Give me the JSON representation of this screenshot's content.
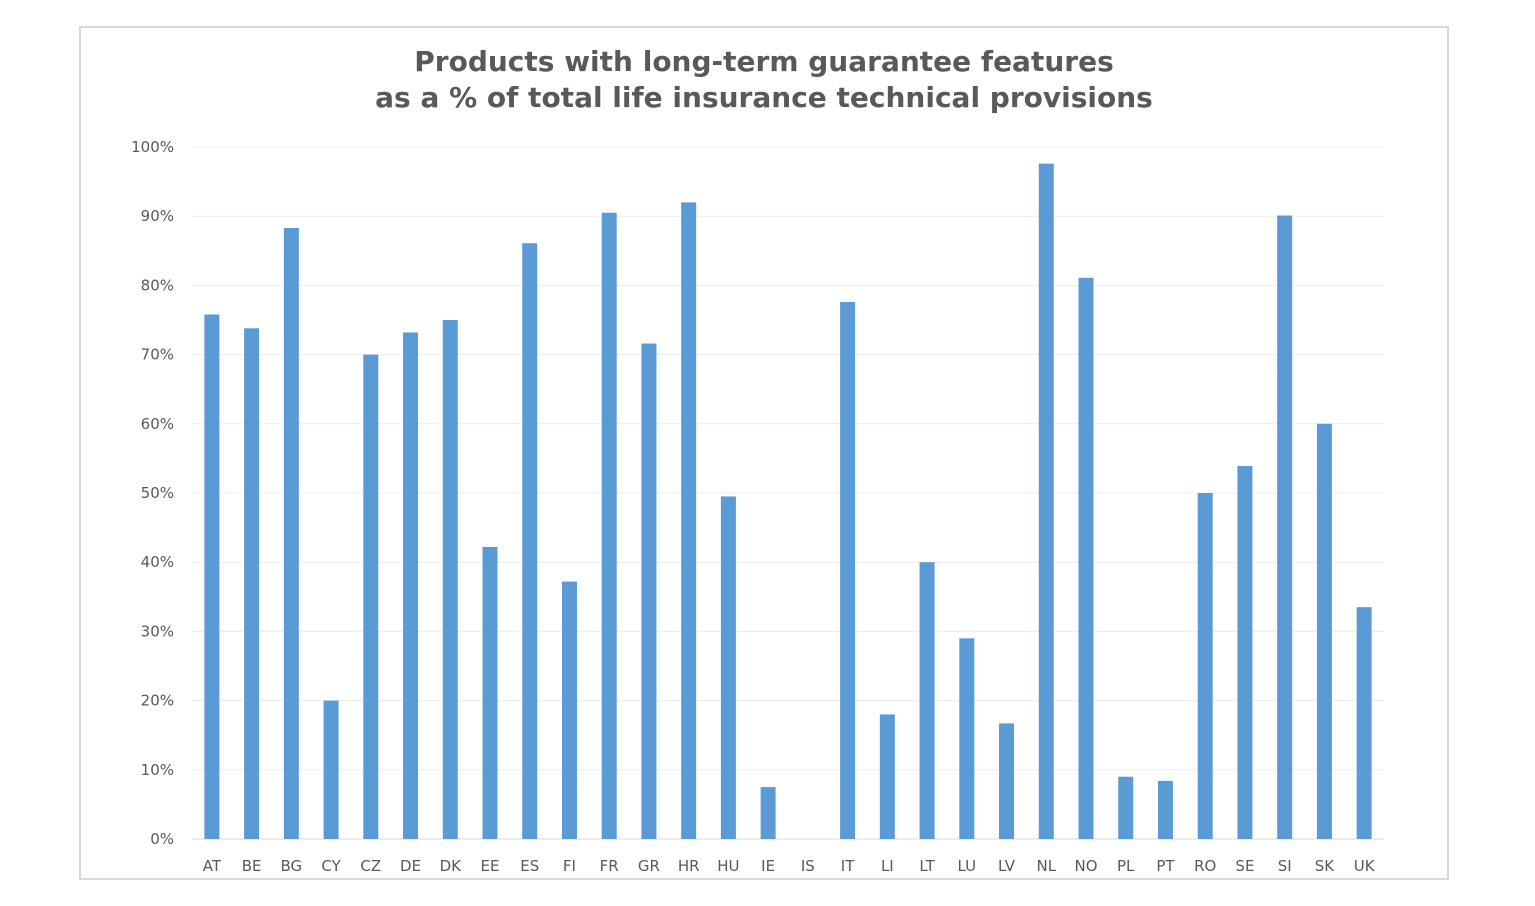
{
  "chart_data": {
    "type": "bar",
    "title_lines": [
      "Products with long-term guarantee features",
      "as a % of total life insurance technical provisions"
    ],
    "categories": [
      "AT",
      "BE",
      "BG",
      "CY",
      "CZ",
      "DE",
      "DK",
      "EE",
      "ES",
      "FI",
      "FR",
      "GR",
      "HR",
      "HU",
      "IE",
      "IS",
      "IT",
      "LI",
      "LT",
      "LU",
      "LV",
      "NL",
      "NO",
      "PL",
      "PT",
      "RO",
      "SE",
      "SI",
      "SK",
      "UK"
    ],
    "values": [
      75.8,
      73.8,
      88.3,
      20.0,
      70.0,
      73.2,
      75.0,
      42.2,
      86.1,
      37.2,
      90.5,
      71.6,
      92.0,
      49.5,
      7.5,
      0,
      77.6,
      18.0,
      40.0,
      29.0,
      16.7,
      97.6,
      81.1,
      9.0,
      8.4,
      50.0,
      53.9,
      90.1,
      60.0,
      33.5
    ],
    "ylim": [
      0,
      100
    ],
    "yticks": [
      "0%",
      "10%",
      "20%",
      "30%",
      "40%",
      "50%",
      "60%",
      "70%",
      "80%",
      "90%",
      "100%"
    ],
    "bar_color": "#5b9bd5",
    "grid": true
  }
}
